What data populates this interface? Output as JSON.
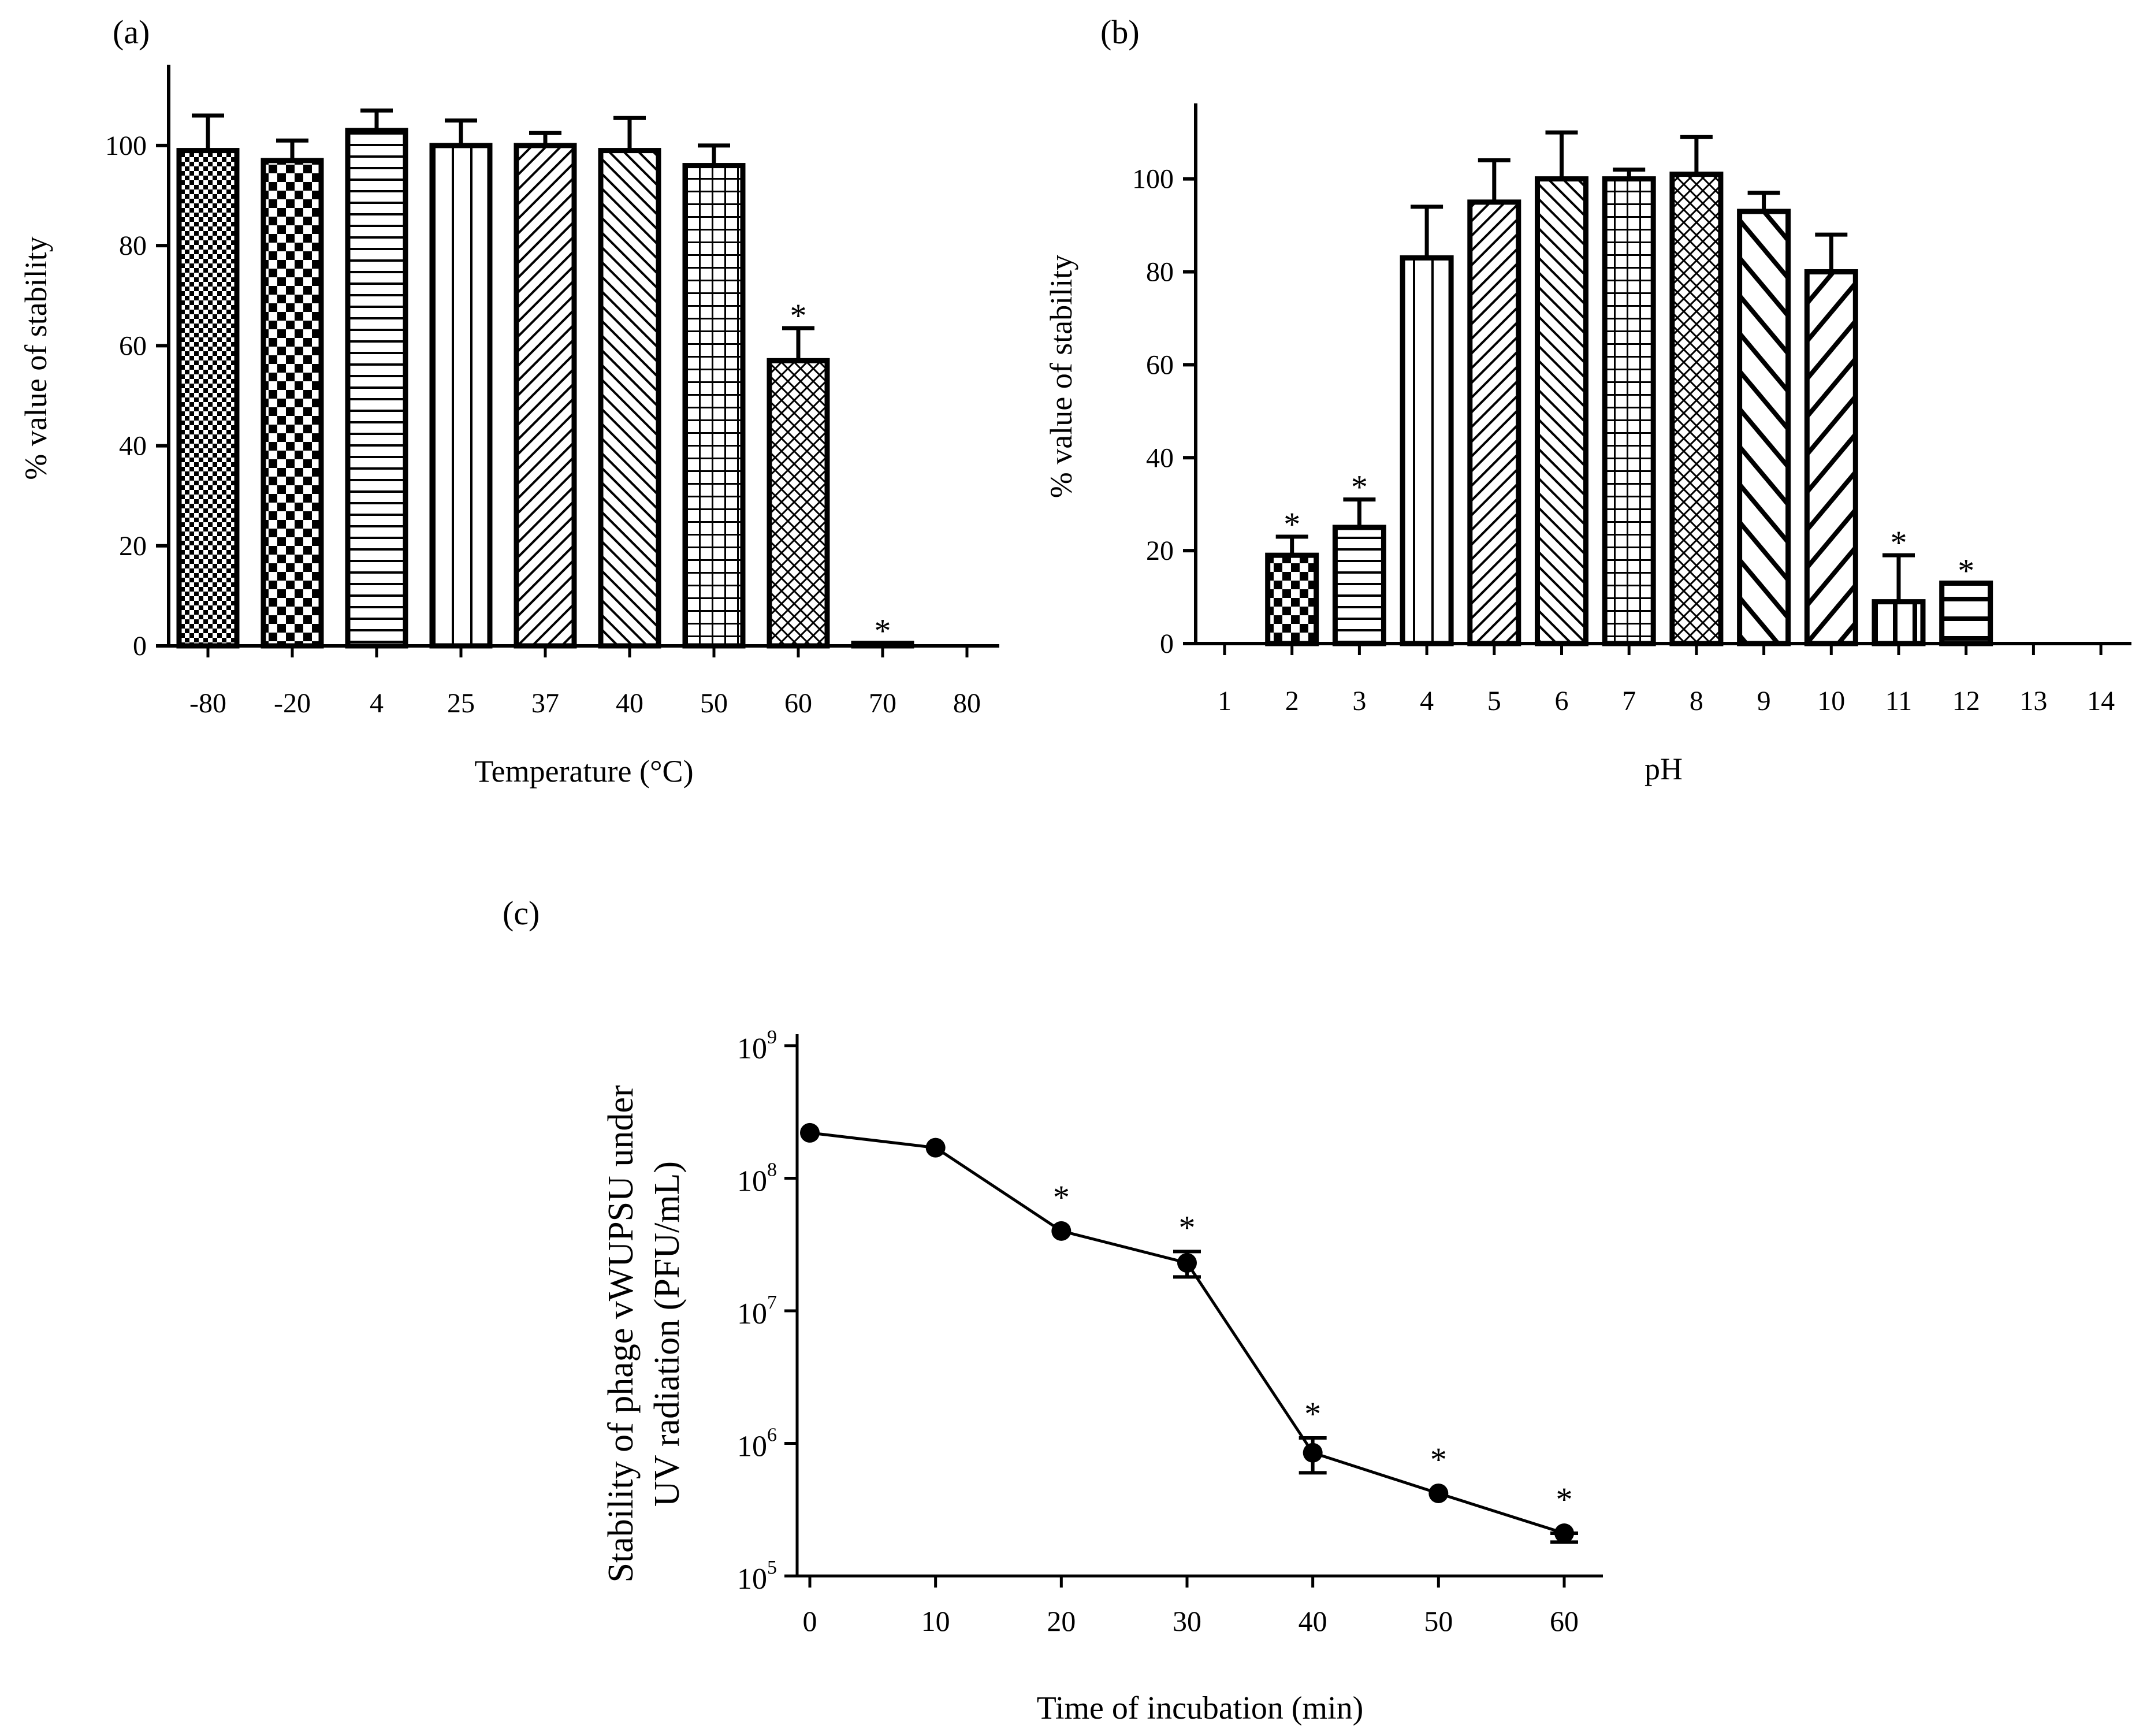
{
  "figure": {
    "panel_a_label": "(a)",
    "panel_b_label": "(b)",
    "panel_c_label": "(c)"
  },
  "chart_data": [
    {
      "type": "bar",
      "panel": "(a)",
      "title": "",
      "xlabel": "Temperature (°C)",
      "ylabel": "% value of stability",
      "ylim": [
        0,
        115
      ],
      "yticks": [
        0,
        20,
        40,
        60,
        80,
        100
      ],
      "categories": [
        "-80",
        "-20",
        "4",
        "25",
        "37",
        "40",
        "50",
        "60",
        "70",
        "80"
      ],
      "values": [
        99,
        97,
        103,
        100,
        100,
        99,
        96,
        57,
        0.5,
        0
      ],
      "errors": [
        7,
        4,
        4,
        5,
        2.5,
        6.5,
        4,
        6.5,
        0,
        0
      ],
      "significance": [
        "",
        "",
        "",
        "",
        "",
        "",
        "",
        "*",
        "*",
        ""
      ],
      "patterns": [
        "fine-checker",
        "checker",
        "horizontal",
        "vertical",
        "diag-up",
        "diag-down",
        "grid",
        "crosshatch",
        "none",
        "none"
      ]
    },
    {
      "type": "bar",
      "panel": "(b)",
      "title": "",
      "xlabel": "pH",
      "ylabel": "% value of stability",
      "ylim": [
        0,
        115
      ],
      "yticks": [
        0,
        20,
        40,
        60,
        80,
        100
      ],
      "categories": [
        "1",
        "2",
        "3",
        "4",
        "5",
        "6",
        "7",
        "8",
        "9",
        "10",
        "11",
        "12",
        "13",
        "14"
      ],
      "values": [
        0,
        19,
        25,
        83,
        95,
        100,
        100,
        101,
        93,
        80,
        9,
        13,
        0,
        0
      ],
      "errors": [
        0,
        4,
        6,
        11,
        9,
        10,
        2,
        8,
        4,
        8,
        10,
        0,
        0,
        0
      ],
      "significance": [
        "",
        "*",
        "*",
        "",
        "",
        "",
        "",
        "",
        "",
        "",
        "*",
        "*",
        "",
        ""
      ],
      "patterns": [
        "none",
        "checker",
        "horizontal",
        "vertical",
        "diag-up",
        "diag-down",
        "grid",
        "crosshatch",
        "diag-down-wide",
        "diag-up-wide",
        "vertical-wide",
        "horizontal-wide",
        "none",
        "none"
      ]
    },
    {
      "type": "line",
      "panel": "(c)",
      "title": "",
      "xlabel": "Time of incubation (min)",
      "ylabel_line1": "Stability of phage vWUPSU under",
      "ylabel_line2": "UV radiation (PFU/mL)",
      "yscale": "log",
      "xlim": [
        0,
        63
      ],
      "ylim": [
        100000,
        1000000000
      ],
      "xticks": [
        0,
        10,
        20,
        30,
        40,
        50,
        60
      ],
      "yticks": [
        {
          "value": 100000,
          "base": "10",
          "exp": "5"
        },
        {
          "value": 1000000,
          "base": "10",
          "exp": "6"
        },
        {
          "value": 10000000,
          "base": "10",
          "exp": "7"
        },
        {
          "value": 100000000,
          "base": "10",
          "exp": "8"
        },
        {
          "value": 1000000000,
          "base": "10",
          "exp": "9"
        }
      ],
      "x": [
        0,
        10,
        20,
        30,
        40,
        50,
        60
      ],
      "y": [
        220000000,
        170000000,
        40000000,
        23000000,
        850000,
        420000,
        210000
      ],
      "yerr_low": [
        220000000,
        170000000,
        40000000,
        18000000,
        600000,
        420000,
        180000
      ],
      "yerr_high": [
        220000000,
        170000000,
        40000000,
        28000000,
        1100000,
        420000,
        210000
      ],
      "significance": [
        "",
        "",
        "*",
        "*",
        "*",
        "*",
        "*"
      ]
    }
  ]
}
